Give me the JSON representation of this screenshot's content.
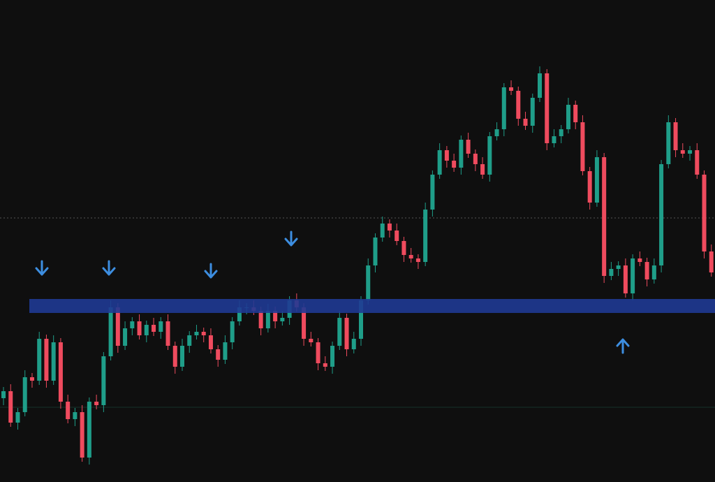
{
  "chart_data": {
    "type": "candlestick",
    "open": [
      120,
      130,
      85,
      100,
      150,
      145,
      205,
      145,
      200,
      115,
      90,
      100,
      35,
      115,
      110,
      180,
      250,
      195,
      220,
      230,
      210,
      225,
      215,
      230,
      195,
      165,
      195,
      210,
      215,
      210,
      190,
      175,
      200,
      230,
      250,
      250,
      245,
      220,
      245,
      230,
      235,
      260,
      250,
      205,
      200,
      170,
      165,
      195,
      235,
      190,
      205,
      260,
      310,
      350,
      370,
      360,
      345,
      325,
      320,
      315,
      390,
      440,
      475,
      460,
      450,
      490,
      470,
      455,
      440,
      495,
      505,
      565,
      560,
      520,
      510,
      550,
      585,
      485,
      495,
      505,
      540,
      515,
      445,
      400,
      465,
      295,
      305,
      310,
      270,
      320,
      315,
      290,
      310,
      455,
      515,
      475,
      470,
      475,
      440,
      330
    ],
    "high": [
      136,
      140,
      106,
      160,
      156,
      215,
      211,
      210,
      206,
      125,
      106,
      110,
      121,
      125,
      186,
      260,
      256,
      230,
      236,
      240,
      231,
      235,
      236,
      240,
      201,
      205,
      216,
      225,
      221,
      220,
      196,
      210,
      236,
      260,
      256,
      260,
      251,
      255,
      251,
      245,
      266,
      270,
      256,
      215,
      206,
      180,
      201,
      245,
      241,
      215,
      266,
      320,
      356,
      380,
      376,
      370,
      351,
      335,
      326,
      400,
      446,
      485,
      481,
      470,
      496,
      500,
      476,
      465,
      501,
      515,
      571,
      575,
      566,
      530,
      556,
      595,
      591,
      505,
      511,
      550,
      546,
      525,
      451,
      475,
      471,
      315,
      316,
      320,
      326,
      330,
      321,
      320,
      461,
      525,
      521,
      485,
      481,
      485,
      446,
      340
    ],
    "low": [
      110,
      79,
      75,
      94,
      135,
      139,
      135,
      139,
      105,
      84,
      80,
      29,
      25,
      104,
      100,
      174,
      185,
      189,
      210,
      204,
      200,
      209,
      205,
      189,
      155,
      159,
      185,
      204,
      200,
      184,
      165,
      169,
      190,
      224,
      240,
      239,
      210,
      214,
      220,
      224,
      225,
      244,
      195,
      194,
      160,
      159,
      155,
      189,
      180,
      184,
      195,
      254,
      300,
      344,
      350,
      339,
      315,
      314,
      305,
      309,
      380,
      434,
      450,
      444,
      440,
      464,
      445,
      434,
      430,
      489,
      495,
      554,
      510,
      504,
      500,
      544,
      475,
      479,
      485,
      499,
      505,
      439,
      390,
      394,
      285,
      289,
      295,
      264,
      260,
      309,
      280,
      284,
      300,
      449,
      465,
      464,
      460,
      434,
      320,
      294
    ],
    "close": [
      130,
      85,
      100,
      150,
      145,
      205,
      145,
      200,
      115,
      90,
      100,
      35,
      115,
      110,
      180,
      250,
      195,
      220,
      230,
      210,
      225,
      215,
      230,
      195,
      165,
      195,
      210,
      215,
      210,
      190,
      175,
      200,
      230,
      250,
      250,
      245,
      220,
      245,
      230,
      235,
      260,
      250,
      205,
      200,
      170,
      165,
      195,
      235,
      190,
      205,
      260,
      310,
      350,
      370,
      360,
      345,
      325,
      320,
      315,
      390,
      440,
      475,
      460,
      450,
      490,
      470,
      455,
      440,
      495,
      505,
      565,
      560,
      520,
      510,
      550,
      585,
      485,
      495,
      505,
      540,
      515,
      445,
      400,
      465,
      295,
      305,
      310,
      270,
      320,
      315,
      290,
      310,
      455,
      515,
      475,
      470,
      475,
      440,
      330,
      300
    ],
    "up_color": "#1f9e89",
    "down_color": "#ef4b5e",
    "ylim": [
      0,
      690
    ],
    "zone": [
      242,
      262
    ],
    "zone_color": "#1f3a93",
    "price_line": 378,
    "level_line": 107
  }
}
